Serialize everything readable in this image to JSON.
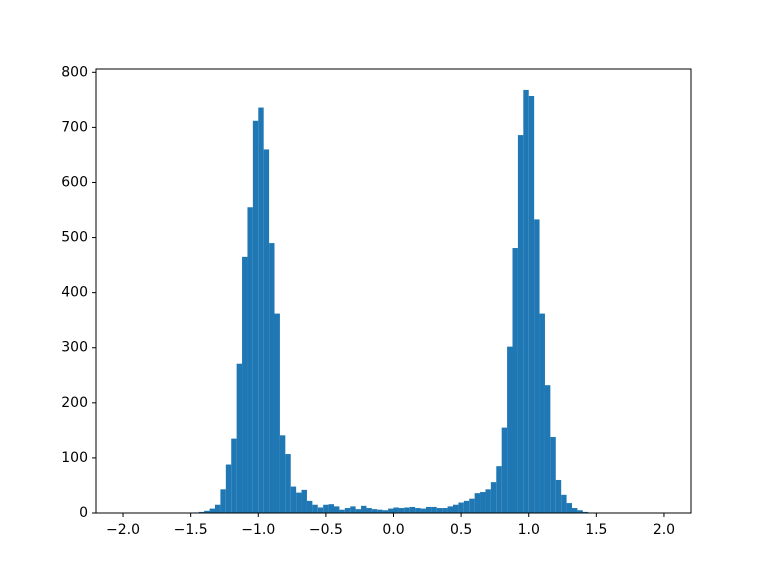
{
  "chart_data": {
    "type": "histogram",
    "color": "#1f77b4",
    "bins": [
      -2,
      -1.96,
      -1.92,
      -1.88,
      -1.84,
      -1.8,
      -1.76,
      -1.72,
      -1.68,
      -1.64,
      -1.6,
      -1.56,
      -1.52,
      -1.48,
      -1.44,
      -1.4,
      -1.36,
      -1.32,
      -1.28,
      -1.24,
      -1.2,
      -1.16,
      -1.12,
      -1.08,
      -1.04,
      -1,
      -0.96,
      -0.92,
      -0.88,
      -0.84,
      -0.8,
      -0.76,
      -0.72,
      -0.68,
      -0.64,
      -0.6,
      -0.56,
      -0.52,
      -0.48,
      -0.44,
      -0.4,
      -0.36,
      -0.32,
      -0.28,
      -0.24,
      -0.2,
      -0.16,
      -0.12,
      -0.08,
      -0.04,
      0,
      0.04,
      0.08,
      0.12,
      0.16,
      0.2,
      0.24,
      0.28,
      0.32,
      0.36,
      0.4,
      0.44,
      0.48,
      0.52,
      0.56,
      0.6,
      0.64,
      0.68,
      0.72,
      0.76,
      0.8,
      0.84,
      0.88,
      0.92,
      0.96,
      1,
      1.04,
      1.08,
      1.12,
      1.16,
      1.2,
      1.24,
      1.28,
      1.32,
      1.36,
      1.4,
      1.44,
      1.48,
      1.52,
      1.56,
      1.6,
      1.64,
      1.68,
      1.72,
      1.76,
      1.8,
      1.84,
      1.88,
      1.92,
      1.96,
      2
    ],
    "values": [
      0,
      0,
      0,
      0,
      0,
      0,
      0,
      0,
      0,
      0,
      0,
      0,
      0,
      1,
      2,
      4,
      8,
      15,
      43,
      88,
      135,
      271,
      465,
      555,
      712,
      736,
      660,
      490,
      362,
      141,
      107,
      48,
      37,
      42,
      22,
      15,
      10,
      15,
      16,
      12,
      6,
      9,
      12,
      7,
      13,
      9,
      7,
      6,
      5,
      8,
      10,
      9,
      10,
      11,
      9,
      8,
      11,
      11,
      9,
      9,
      12,
      15,
      19,
      22,
      26,
      36,
      38,
      43,
      56,
      85,
      155,
      302,
      481,
      686,
      768,
      757,
      533,
      362,
      232,
      138,
      60,
      33,
      18,
      9,
      5,
      2,
      0,
      0,
      0,
      0,
      0,
      0,
      0,
      0,
      0,
      0,
      0,
      0,
      0,
      0
    ],
    "xlim": [
      -2.2,
      2.2
    ],
    "xticks": [
      {
        "value": -2,
        "label": "−2.0"
      },
      {
        "value": -1.5,
        "label": "−1.5"
      },
      {
        "value": -1,
        "label": "−1.0"
      },
      {
        "value": -0.5,
        "label": "−0.5"
      },
      {
        "value": 0,
        "label": "0.0"
      },
      0.5,
      {
        "value": 1,
        "label": "1.0"
      },
      1.5,
      {
        "value": 2,
        "label": "2.0"
      }
    ],
    "ylim": [
      0,
      806
    ],
    "yticks": [
      0,
      100,
      200,
      300,
      400,
      500,
      600,
      700,
      800
    ]
  }
}
